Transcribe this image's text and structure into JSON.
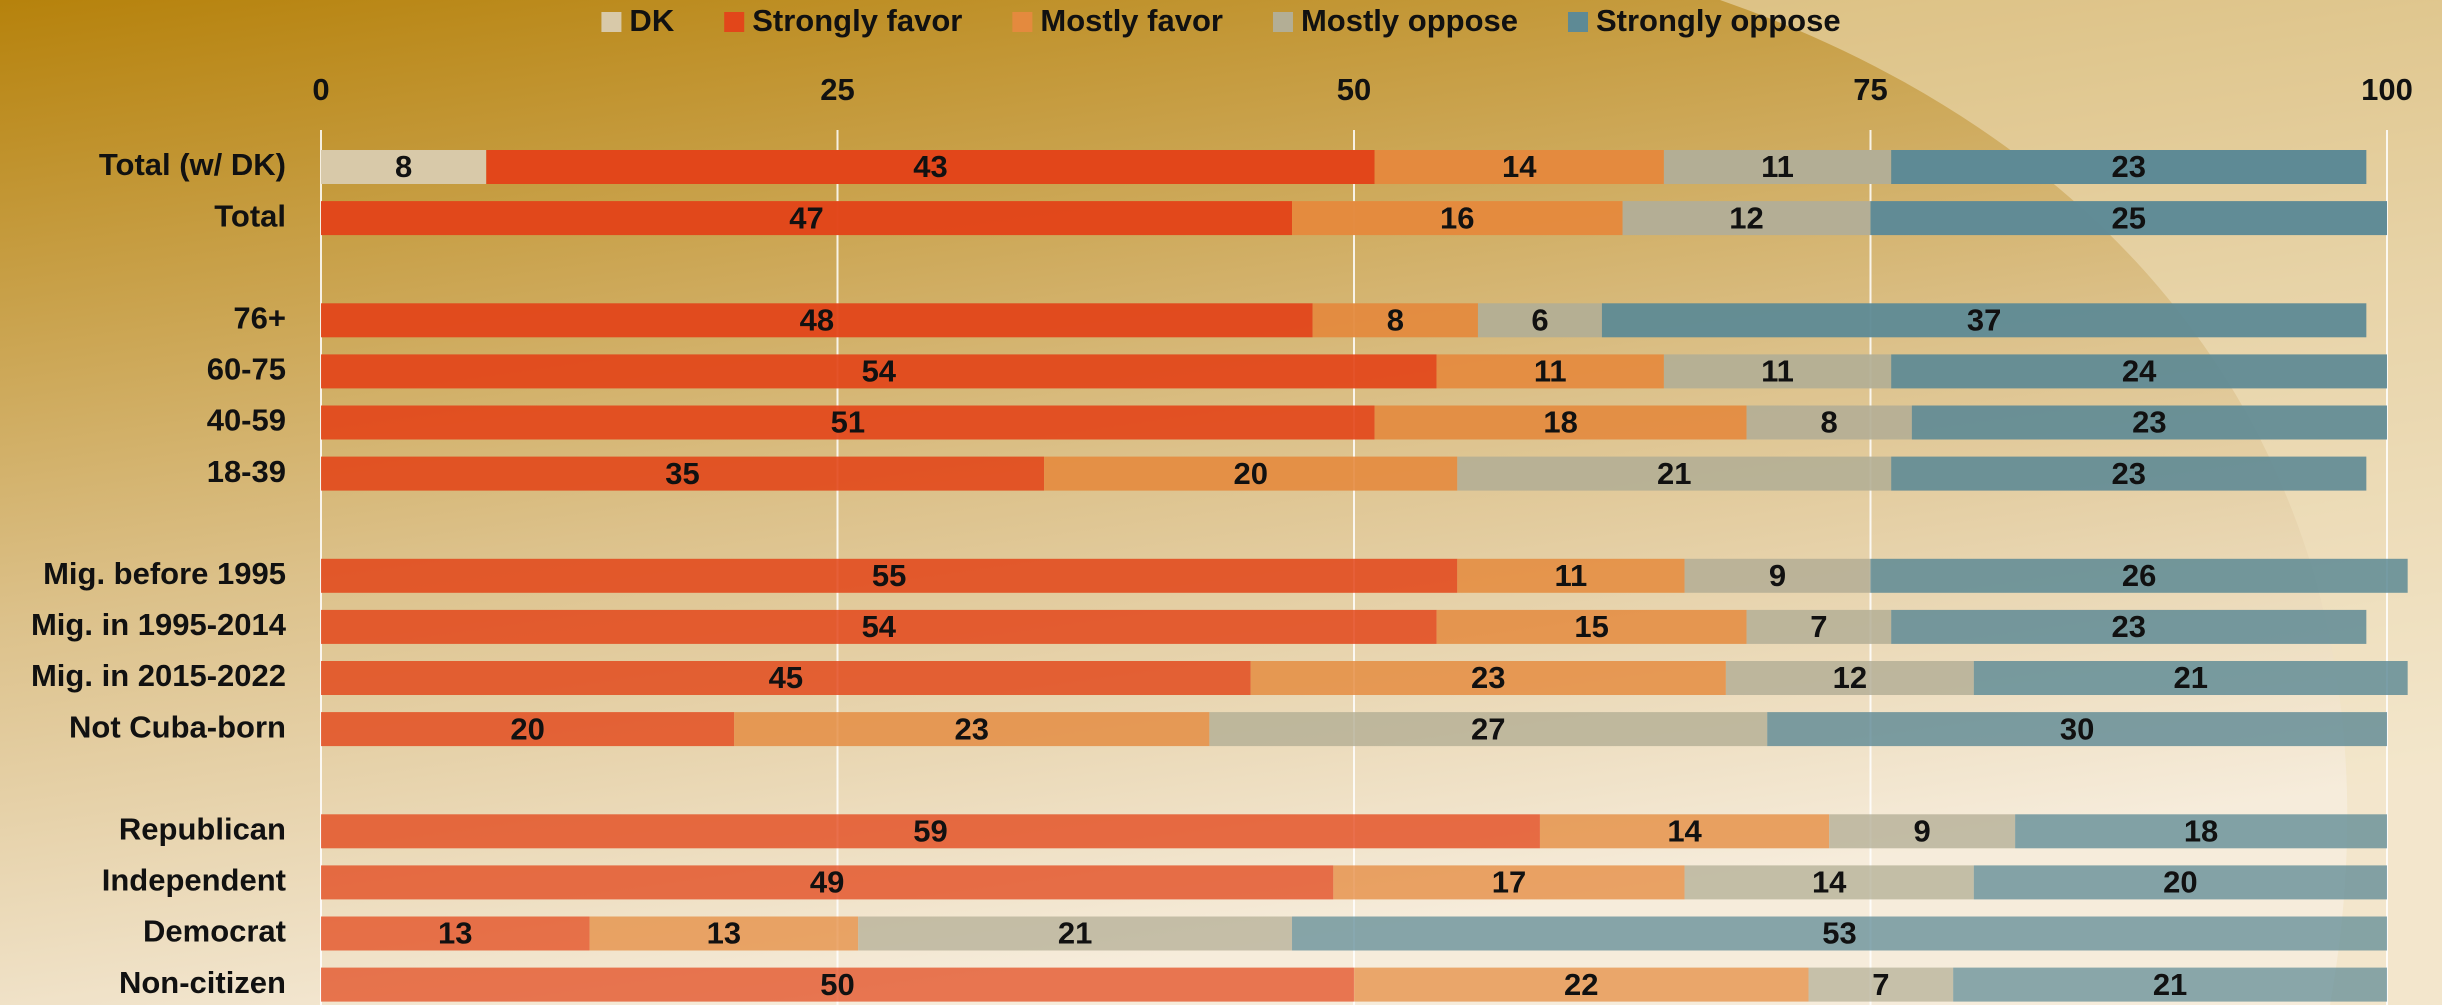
{
  "chart_data": {
    "type": "stacked-bar-horizontal",
    "categories": [
      "Total (w/ DK)",
      "Total",
      null,
      "76+",
      "60-75",
      "40-59",
      "18-39",
      null,
      "Mig. before 1995",
      "Mig. in 1995-2014",
      "Mig. in 2015-2022",
      "Not Cuba-born",
      null,
      "Republican",
      "Independent",
      "Democrat",
      "Non-citizen"
    ],
    "series": [
      {
        "name": "DK",
        "color": "#d8c9a9",
        "values": [
          8,
          null,
          null,
          null,
          null,
          null,
          null,
          null,
          null,
          null,
          null,
          null,
          null,
          null,
          null,
          null,
          null
        ]
      },
      {
        "name": "Strongly favor",
        "color": "#e2461a",
        "values": [
          43,
          47,
          null,
          48,
          54,
          51,
          35,
          null,
          55,
          54,
          45,
          20,
          null,
          59,
          49,
          13,
          50
        ]
      },
      {
        "name": "Mostly favor",
        "color": "#e48a3e",
        "values": [
          14,
          16,
          null,
          8,
          11,
          18,
          20,
          null,
          11,
          15,
          23,
          23,
          null,
          14,
          17,
          13,
          22
        ]
      },
      {
        "name": "Mostly oppose",
        "color": "#b3ae95",
        "values": [
          11,
          12,
          null,
          6,
          11,
          8,
          21,
          null,
          9,
          7,
          12,
          27,
          null,
          9,
          14,
          21,
          7
        ]
      },
      {
        "name": "Strongly oppose",
        "color": "#5e8a95",
        "values": [
          23,
          25,
          null,
          37,
          24,
          23,
          23,
          null,
          26,
          23,
          21,
          30,
          null,
          18,
          20,
          53,
          21
        ]
      }
    ],
    "xlim": [
      0,
      100
    ],
    "xticks": [
      0,
      25,
      50,
      75,
      100
    ],
    "grid": true,
    "legend": "top"
  }
}
